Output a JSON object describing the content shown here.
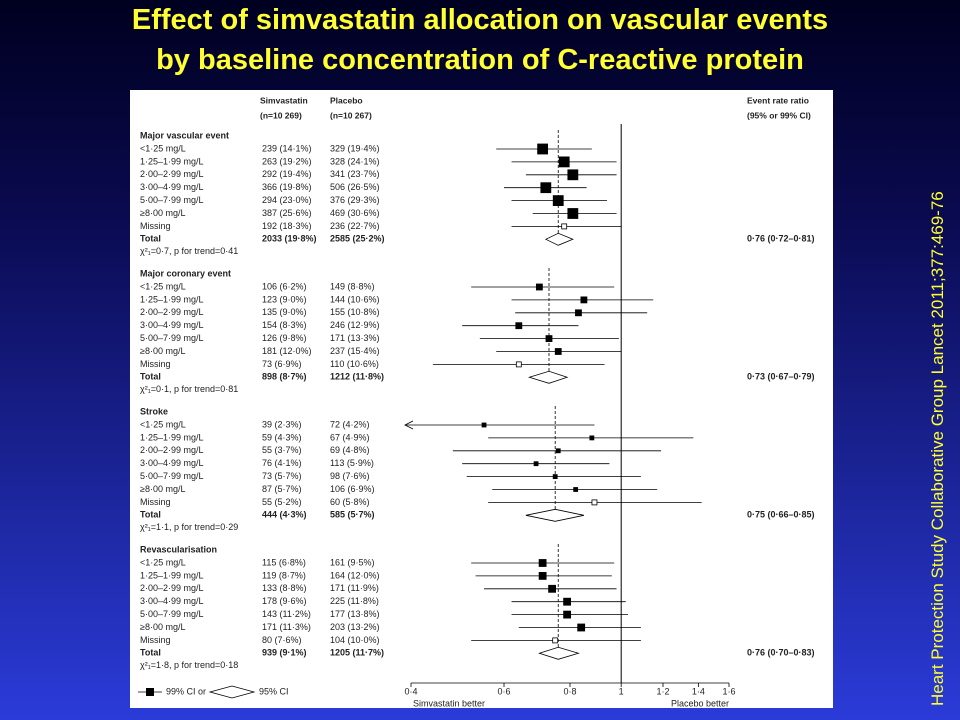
{
  "title": [
    "Effect of simvastatin allocation on vascular events",
    "by baseline concentration of C-reactive protein"
  ],
  "side_note": "Heart Protection Study Collaborative Group Lancet 2011;377:469-76",
  "chart_data": {
    "type": "forest",
    "log_scale": true,
    "columns": {
      "simvastatin": [
        "Simvastatin",
        "(n=10 269)"
      ],
      "placebo": [
        "Placebo",
        "(n=10 267)"
      ],
      "ratio": [
        "Event rate ratio",
        "(95% or 99% CI)"
      ]
    },
    "xlim": [
      0.4,
      1.6
    ],
    "xticks": [
      {
        "value": 0.4,
        "label": "0·4"
      },
      {
        "value": 0.6,
        "label": "0·6"
      },
      {
        "value": 0.8,
        "label": "0·8"
      },
      1,
      {
        "value": 1.2,
        "label": "1·2"
      },
      {
        "value": 1.4,
        "label": "1·4"
      },
      {
        "value": 1.6,
        "label": "1·6"
      }
    ],
    "x_labels": [
      "Simvastatin better",
      "Placebo better"
    ],
    "legend": [
      "99% CI or",
      "95% CI"
    ],
    "groups": [
      {
        "name": "Major vascular event",
        "heterogeneity": "χ²₁=0·7, p for trend=0·41",
        "rows": [
          {
            "label": "<1·25 mg/L",
            "simvastatin": "239 (14·1%)",
            "placebo": "329 (19·4%)",
            "estimate": 0.71,
            "lower": 0.58,
            "upper": 0.88
          },
          {
            "label": "1·25–1·99 mg/L",
            "simvastatin": "263 (19·2%)",
            "placebo": "328 (24·1%)",
            "estimate": 0.78,
            "lower": 0.62,
            "upper": 0.98
          },
          {
            "label": "2·00–2·99 mg/L",
            "simvastatin": "292 (19·4%)",
            "placebo": "341 (23·7%)",
            "estimate": 0.81,
            "lower": 0.66,
            "upper": 0.98
          },
          {
            "label": "3·00–4·99 mg/L",
            "simvastatin": "366 (19·8%)",
            "placebo": "506 (26·5%)",
            "estimate": 0.72,
            "lower": 0.6,
            "upper": 0.86
          },
          {
            "label": "5·00–7·99 mg/L",
            "simvastatin": "294 (23·0%)",
            "placebo": "376 (29·3%)",
            "estimate": 0.76,
            "lower": 0.62,
            "upper": 0.94
          },
          {
            "label": "≥8·00 mg/L",
            "simvastatin": "387 (25·6%)",
            "placebo": "469 (30·6%)",
            "estimate": 0.81,
            "lower": 0.68,
            "upper": 0.98
          },
          {
            "label": "Missing",
            "simvastatin": "192 (18·3%)",
            "placebo": "236 (22·7%)",
            "estimate": 0.78,
            "lower": 0.62,
            "upper": 1.0,
            "open": true
          }
        ],
        "total": {
          "label": "Total",
          "simvastatin": "2033 (19·8%)",
          "placebo": "2585 (25·2%)",
          "estimate": 0.76,
          "lower": 0.72,
          "upper": 0.81,
          "value_label": "0·76 (0·72–0·81)"
        }
      },
      {
        "name": "Major coronary event",
        "heterogeneity": "χ²₁=0·1, p for trend=0·81",
        "rows": [
          {
            "label": "<1·25 mg/L",
            "simvastatin": "106 (6·2%)",
            "placebo": "149 (8·8%)",
            "estimate": 0.7,
            "lower": 0.52,
            "upper": 0.97
          },
          {
            "label": "1·25–1·99 mg/L",
            "simvastatin": "123 (9·0%)",
            "placebo": "144 (10·6%)",
            "estimate": 0.85,
            "lower": 0.62,
            "upper": 1.15
          },
          {
            "label": "2·00–2·99 mg/L",
            "simvastatin": "135 (9·0%)",
            "placebo": "155 (10·8%)",
            "estimate": 0.83,
            "lower": 0.63,
            "upper": 1.12
          },
          {
            "label": "3·00–4·99 mg/L",
            "simvastatin": "154 (8·3%)",
            "placebo": "246 (12·9%)",
            "estimate": 0.64,
            "lower": 0.5,
            "upper": 0.83
          },
          {
            "label": "5·00–7·99 mg/L",
            "simvastatin": "126 (9·8%)",
            "placebo": "171 (13·3%)",
            "estimate": 0.73,
            "lower": 0.54,
            "upper": 0.99
          },
          {
            "label": "≥8·00 mg/L",
            "simvastatin": "181 (12·0%)",
            "placebo": "237 (15·4%)",
            "estimate": 0.76,
            "lower": 0.58,
            "upper": 1.0
          },
          {
            "label": "Missing",
            "simvastatin": "73 (6·9%)",
            "placebo": "110 (10·6%)",
            "estimate": 0.64,
            "lower": 0.44,
            "upper": 0.93,
            "open": true
          }
        ],
        "total": {
          "label": "Total",
          "simvastatin": "898 (8·7%)",
          "placebo": "1212 (11·8%)",
          "estimate": 0.73,
          "lower": 0.67,
          "upper": 0.79,
          "value_label": "0·73 (0·67–0·79)"
        }
      },
      {
        "name": "Stroke",
        "heterogeneity": "χ²₁=1·1, p for trend=0·29",
        "rows": [
          {
            "label": "<1·25 mg/L",
            "simvastatin": "39 (2·3%)",
            "placebo": "72 (4·2%)",
            "estimate": 0.55,
            "lower": 0.35,
            "upper": 0.89
          },
          {
            "label": "1·25–1·99 mg/L",
            "simvastatin": "59 (4·3%)",
            "placebo": "67 (4·9%)",
            "estimate": 0.88,
            "lower": 0.56,
            "upper": 1.37
          },
          {
            "label": "2·00–2·99 mg/L",
            "simvastatin": "55 (3·7%)",
            "placebo": "69 (4·8%)",
            "estimate": 0.76,
            "lower": 0.48,
            "upper": 1.19
          },
          {
            "label": "3·00–4·99 mg/L",
            "simvastatin": "76 (4·1%)",
            "placebo": "113 (5·9%)",
            "estimate": 0.69,
            "lower": 0.5,
            "upper": 0.95
          },
          {
            "label": "5·00–7·99 mg/L",
            "simvastatin": "73 (5·7%)",
            "placebo": "98 (7·6%)",
            "estimate": 0.75,
            "lower": 0.51,
            "upper": 1.09
          },
          {
            "label": "≥8·00 mg/L",
            "simvastatin": "87 (5·7%)",
            "placebo": "106 (6·9%)",
            "estimate": 0.82,
            "lower": 0.57,
            "upper": 1.17
          },
          {
            "label": "Missing",
            "simvastatin": "55 (5·2%)",
            "placebo": "60 (5·8%)",
            "estimate": 0.89,
            "lower": 0.56,
            "upper": 1.42,
            "open": true
          }
        ],
        "total": {
          "label": "Total",
          "simvastatin": "444 (4·3%)",
          "placebo": "585 (5·7%)",
          "estimate": 0.75,
          "lower": 0.66,
          "upper": 0.85,
          "value_label": "0·75 (0·66–0·85)"
        }
      },
      {
        "name": "Revascularisation",
        "heterogeneity": "χ²₁=1·8, p for trend=0·18",
        "rows": [
          {
            "label": "<1·25 mg/L",
            "simvastatin": "115 (6·8%)",
            "placebo": "161 (9·5%)",
            "estimate": 0.71,
            "lower": 0.52,
            "upper": 0.97
          },
          {
            "label": "1·25–1·99 mg/L",
            "simvastatin": "119 (8·7%)",
            "placebo": "164 (12·0%)",
            "estimate": 0.71,
            "lower": 0.53,
            "upper": 0.96
          },
          {
            "label": "2·00–2·99 mg/L",
            "simvastatin": "133 (8·8%)",
            "placebo": "171 (11·9%)",
            "estimate": 0.74,
            "lower": 0.55,
            "upper": 0.98
          },
          {
            "label": "3·00–4·99 mg/L",
            "simvastatin": "178 (9·6%)",
            "placebo": "225 (11·8%)",
            "estimate": 0.79,
            "lower": 0.62,
            "upper": 1.02
          },
          {
            "label": "5·00–7·99 mg/L",
            "simvastatin": "143 (11·2%)",
            "placebo": "177 (13·8%)",
            "estimate": 0.79,
            "lower": 0.62,
            "upper": 1.03
          },
          {
            "label": "≥8·00 mg/L",
            "simvastatin": "171 (11·3%)",
            "placebo": "203 (13·2%)",
            "estimate": 0.84,
            "lower": 0.64,
            "upper": 1.09
          },
          {
            "label": "Missing",
            "simvastatin": "80 (7·6%)",
            "placebo": "104 (10·0%)",
            "estimate": 0.75,
            "lower": 0.52,
            "upper": 1.09,
            "open": true
          }
        ],
        "total": {
          "label": "Total",
          "simvastatin": "939 (9·1%)",
          "placebo": "1205 (11·7%)",
          "estimate": 0.76,
          "lower": 0.7,
          "upper": 0.83,
          "value_label": "0·76 (0·70–0·83)"
        }
      }
    ]
  }
}
